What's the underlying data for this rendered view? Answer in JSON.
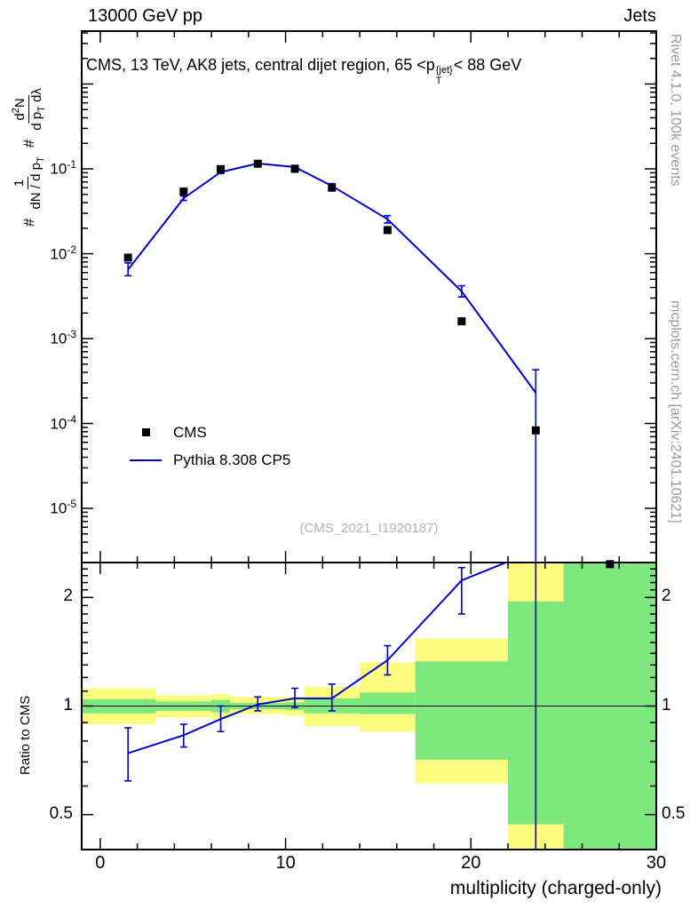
{
  "header": {
    "left": "13000 GeV pp",
    "right": "Jets"
  },
  "main_panel": {
    "title": {
      "pre": "CMS, 13 TeV, AK8 jets, central dijet region, 65 <p",
      "sup": "{jet}",
      "sub": "T",
      "post": "< 88 GeV"
    },
    "legend": {
      "cms": "CMS",
      "mc": "Pythia 8.308 CP5"
    },
    "watermark": "(CMS_2021_I1920187)",
    "ylabel": {
      "hash1": "#",
      "frac1_num": "1",
      "frac1_den_pre": "dN / d p",
      "frac1_den_sub": "T",
      "hash2": "#",
      "frac2_num_pre": "d",
      "frac2_num_sup": "2",
      "frac2_num_post": "N",
      "frac2_den_pre": "d p",
      "frac2_den_sub": "T",
      "frac2_den_post": " dλ"
    }
  },
  "ratio_panel": {
    "ylabel": "Ratio to CMS"
  },
  "side_notes": {
    "top": "Rivet 4.1.0,  100k events",
    "bottom": "mcplots.cern.ch [arXiv:2401.10621]"
  },
  "xaxis": {
    "title": "multiplicity (charged-only)"
  },
  "colors": {
    "mc_line": "#0000cc",
    "band_yellow": "#fcfc7e",
    "band_green": "#7de87d",
    "marker": "#000000",
    "note_gray": "#9b9b9b",
    "watermark_gray": "#b4b4b4"
  },
  "chart_data": {
    "type": "line",
    "title": "CMS, 13 TeV, AK8 jets, central dijet region, 65 < pT{jet} < 88 GeV",
    "xlabel": "multiplicity (charged-only)",
    "ylabel": "# 1/(dN/dpT) # d2N/(dpT dlambda)",
    "ratio_ylabel": "Ratio to CMS",
    "xlim": [
      -1,
      30
    ],
    "xticks": [
      0,
      10,
      20,
      30
    ],
    "x_minor_step": 2,
    "main": {
      "yscale": "log",
      "ylim": [
        2.3e-06,
        4.2
      ],
      "ytick_exponents": [
        -1,
        -2,
        -3,
        -4,
        -5
      ]
    },
    "ratio": {
      "yscale": "log",
      "ylim": [
        0.4,
        2.5
      ],
      "yticks": [
        0.5,
        1,
        2
      ],
      "ref_line": 1
    },
    "series": {
      "cms": {
        "label": "CMS",
        "x": [
          1.5,
          4.5,
          6.5,
          8.5,
          10.5,
          12.5,
          15.5,
          19.5,
          23.5,
          27.5
        ],
        "y": [
          0.009,
          0.054,
          0.0995,
          0.115,
          0.1,
          0.06,
          0.019,
          0.0016,
          8.3e-05,
          2.2e-06
        ]
      },
      "pythia": {
        "label": "Pythia 8.308 CP5",
        "x": [
          1.5,
          4.5,
          6.5,
          8.5,
          10.5,
          12.5,
          15.5,
          19.5,
          23.5
        ],
        "y": [
          0.0065,
          0.045,
          0.0915,
          0.116,
          0.105,
          0.063,
          0.0255,
          0.0036,
          0.00023
        ],
        "err_lo": [
          0.0055,
          0.0425,
          0.088,
          0.112,
          0.1,
          0.059,
          0.023,
          0.0031,
          2e-06
        ],
        "err_hi": [
          0.0078,
          0.0478,
          0.0952,
          0.12,
          0.11,
          0.067,
          0.0281,
          0.0042,
          0.00043
        ],
        "ratio": [
          0.74,
          0.83,
          0.92,
          1.01,
          1.05,
          1.05,
          1.34,
          2.23,
          2.7
        ],
        "ratio_err_lo": [
          0.62,
          0.77,
          0.85,
          0.97,
          0.99,
          0.97,
          1.22,
          1.8,
          0.3
        ],
        "ratio_err_hi": [
          0.87,
          0.89,
          1.0,
          1.06,
          1.12,
          1.15,
          1.47,
          2.42,
          3.0
        ]
      }
    },
    "ratio_bands": [
      {
        "x0": -1,
        "x1": 3,
        "yellow": [
          0.89,
          1.12
        ],
        "green": [
          0.955,
          1.045
        ]
      },
      {
        "x0": 3,
        "x1": 6,
        "yellow": [
          0.93,
          1.07
        ],
        "green": [
          0.97,
          1.03
        ]
      },
      {
        "x0": 6,
        "x1": 7,
        "yellow": [
          0.92,
          1.08
        ],
        "green": [
          0.96,
          1.04
        ]
      },
      {
        "x0": 7,
        "x1": 10,
        "yellow": [
          0.95,
          1.06
        ],
        "green": [
          0.98,
          1.02
        ]
      },
      {
        "x0": 10,
        "x1": 11,
        "yellow": [
          0.94,
          1.06
        ],
        "green": [
          0.975,
          1.025
        ]
      },
      {
        "x0": 11,
        "x1": 14,
        "yellow": [
          0.88,
          1.13
        ],
        "green": [
          0.955,
          1.05
        ]
      },
      {
        "x0": 14,
        "x1": 17,
        "yellow": [
          0.85,
          1.32
        ],
        "green": [
          0.95,
          1.09
        ]
      },
      {
        "x0": 17,
        "x1": 22,
        "yellow": [
          0.61,
          1.54
        ],
        "green": [
          0.71,
          1.33
        ]
      },
      {
        "x0": 22,
        "x1": 25,
        "yellow": [
          0.3,
          3.0
        ],
        "green": [
          0.47,
          1.95
        ]
      },
      {
        "x0": 25,
        "x1": 30,
        "green": [
          0.3,
          3.0
        ]
      }
    ]
  }
}
